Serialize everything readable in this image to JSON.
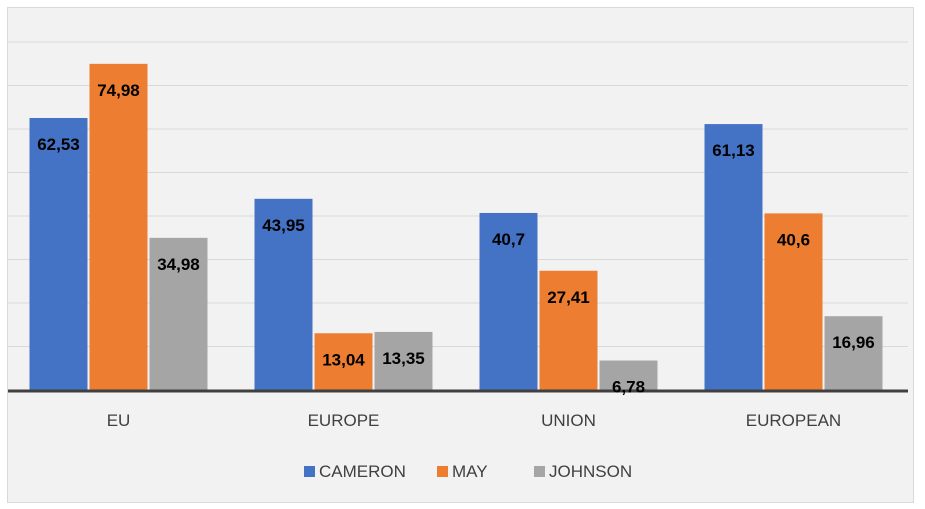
{
  "chart_data": {
    "type": "bar",
    "title": "",
    "xlabel": "",
    "ylabel": "",
    "categories": [
      "EU",
      "EUROPE",
      "UNION",
      "EUROPEAN"
    ],
    "series": [
      {
        "name": "CAMERON",
        "color": "#4472c4",
        "values": [
          62.53,
          43.95,
          40.7,
          61.13
        ],
        "labels": [
          "62,53",
          "43,95",
          "40,7",
          "61,13"
        ]
      },
      {
        "name": "MAY",
        "color": "#ed7d31",
        "values": [
          74.98,
          13.04,
          27.41,
          40.6
        ],
        "labels": [
          "74,98",
          "13,04",
          "27,41",
          "40,6"
        ]
      },
      {
        "name": "JOHNSON",
        "color": "#a5a5a5",
        "values": [
          34.98,
          13.35,
          6.78,
          16.96
        ],
        "labels": [
          "34,98",
          "13,35",
          "6,78",
          "16,96"
        ]
      }
    ],
    "ylim": [
      0,
      80
    ],
    "y_axis_visible": false,
    "grid": true,
    "legend_position": "bottom"
  }
}
